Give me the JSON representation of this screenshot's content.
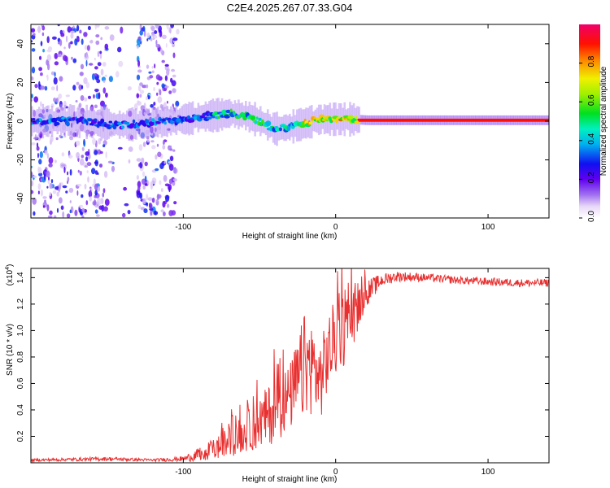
{
  "title": "C2E4.2025.267.07.33.G04",
  "chart_data": [
    {
      "type": "heatmap",
      "name": "spectrogram",
      "xlabel": "Height of straight line (km)",
      "ylabel": "Frequency (Hz)",
      "xlim": [
        -200,
        140
      ],
      "ylim": [
        -50,
        50
      ],
      "xticks": [
        -100,
        0,
        100
      ],
      "xtick_labels": [
        "-100",
        "0",
        "100"
      ],
      "yticks": [
        -40,
        -20,
        0,
        20,
        40
      ],
      "ytick_labels": [
        "-40",
        "-20",
        "0",
        "20",
        "40"
      ],
      "colorbar": {
        "label": "Normalized spectral amplitude",
        "range": [
          0,
          1
        ],
        "ticks": [
          0.0,
          0.2,
          0.4,
          0.6,
          0.8
        ],
        "tick_labels": [
          "0.0",
          "0.2",
          "0.4",
          "0.6",
          "0.8"
        ]
      },
      "ridge": {
        "description_points": [
          [
            -200,
            0
          ],
          [
            -170,
            0
          ],
          [
            -140,
            -2
          ],
          [
            -110,
            0
          ],
          [
            -90,
            2
          ],
          [
            -70,
            4
          ],
          [
            -60,
            3
          ],
          [
            -50,
            0
          ],
          [
            -40,
            -4
          ],
          [
            -30,
            -3
          ],
          [
            -20,
            -1
          ],
          [
            -10,
            1
          ],
          [
            0,
            1
          ],
          [
            10,
            1
          ],
          [
            20,
            0.5
          ],
          [
            140,
            0.5
          ]
        ]
      }
    },
    {
      "type": "line",
      "name": "snr",
      "xlabel": "Height of straight line (km)",
      "ylabel": "SNR (10 * v/v)",
      "scale_label": "(x10",
      "scale_exp": "4",
      "scale_close": ")",
      "xlim": [
        -200,
        140
      ],
      "ylim": [
        0,
        1.47
      ],
      "xticks": [
        -100,
        0,
        100
      ],
      "xtick_labels": [
        "-100",
        "0",
        "100"
      ],
      "yticks": [
        0.2,
        0.4,
        0.6,
        0.8,
        1.0,
        1.2,
        1.4
      ],
      "ytick_labels": [
        "0.2",
        "0.4",
        "0.6",
        "0.8",
        "1.0",
        "1.2",
        "1.4"
      ],
      "series": [
        {
          "name": "SNR",
          "color": "#e83030",
          "envelope": {
            "x": [
              -200,
              -150,
              -120,
              -100,
              -90,
              -80,
              -70,
              -60,
              -50,
              -40,
              -30,
              -25,
              -20,
              -15,
              -10,
              -5,
              0,
              5,
              10,
              15,
              20,
              30,
              40,
              60,
              80,
              100,
              120,
              140
            ],
            "y": [
              0.02,
              0.03,
              0.02,
              0.03,
              0.06,
              0.1,
              0.16,
              0.22,
              0.3,
              0.4,
              0.5,
              0.6,
              0.75,
              0.72,
              0.62,
              0.82,
              0.95,
              1.0,
              1.08,
              1.17,
              1.28,
              1.38,
              1.41,
              1.4,
              1.38,
              1.37,
              1.36,
              1.36
            ],
            "spread": [
              0.01,
              0.015,
              0.01,
              0.02,
              0.05,
              0.08,
              0.12,
              0.14,
              0.2,
              0.25,
              0.25,
              0.35,
              0.4,
              0.35,
              0.3,
              0.3,
              0.3,
              0.28,
              0.25,
              0.15,
              0.1,
              0.05,
              0.04,
              0.03,
              0.03,
              0.03,
              0.03,
              0.03
            ]
          }
        }
      ]
    }
  ],
  "colors": {
    "line": "#e83030",
    "axis": "#000000"
  }
}
